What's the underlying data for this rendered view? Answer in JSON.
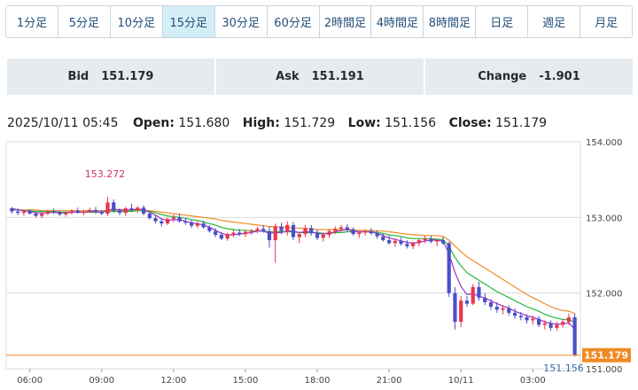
{
  "timeframe_tabs": [
    {
      "label": "1分足",
      "active": false
    },
    {
      "label": "5分足",
      "active": false
    },
    {
      "label": "10分足",
      "active": false
    },
    {
      "label": "15分足",
      "active": true
    },
    {
      "label": "30分足",
      "active": false
    },
    {
      "label": "60分足",
      "active": false
    },
    {
      "label": "2時間足",
      "active": false
    },
    {
      "label": "4時間足",
      "active": false
    },
    {
      "label": "8時間足",
      "active": false
    },
    {
      "label": "日足",
      "active": false
    },
    {
      "label": "週足",
      "active": false
    },
    {
      "label": "月足",
      "active": false
    }
  ],
  "quote": {
    "bid_label": "Bid",
    "bid_value": "151.179",
    "ask_label": "Ask",
    "ask_value": "151.191",
    "change_label": "Change",
    "change_value": "-1.901"
  },
  "ohlc": {
    "datetime": "2025/10/11 05:45",
    "open_label": "Open:",
    "open_value": "151.680",
    "high_label": "High:",
    "high_value": "151.729",
    "low_label": "Low:",
    "low_value": "151.156",
    "close_label": "Close:",
    "close_value": "151.179"
  },
  "colors": {
    "up": "#e8374a",
    "down": "#4a4fc8",
    "ma_fast": "#9b2fc8",
    "ma_mid": "#22b83a",
    "ma_slow": "#f08a24",
    "last_price": "#f08a24",
    "grid": "#dcdcdc",
    "axis_text": "#444444",
    "high_marker": "#d0336a",
    "low_marker": "#3a6aa8"
  },
  "chart_data": {
    "type": "candlestick",
    "interval": "15min",
    "y_ticks": [
      "154.000",
      "153.000",
      "152.000",
      "151.000"
    ],
    "ylim": [
      151.0,
      154.0
    ],
    "x_ticks": [
      "06:00",
      "09:00",
      "12:00",
      "15:00",
      "18:00",
      "21:00",
      "10/11",
      "03:00"
    ],
    "high_marker": {
      "label": "153.272",
      "value": 153.272
    },
    "low_marker": {
      "label": "151.156",
      "value": 151.156
    },
    "last_price": {
      "label": "151.179",
      "value": 151.179
    },
    "candles": [
      [
        153.12,
        153.14,
        153.05,
        153.08
      ],
      [
        153.08,
        153.12,
        153.03,
        153.06
      ],
      [
        153.06,
        153.1,
        153.02,
        153.08
      ],
      [
        153.08,
        153.11,
        153.04,
        153.05
      ],
      [
        153.05,
        153.08,
        153.0,
        153.02
      ],
      [
        153.02,
        153.07,
        152.99,
        153.05
      ],
      [
        153.05,
        153.1,
        153.03,
        153.08
      ],
      [
        153.08,
        153.12,
        153.05,
        153.06
      ],
      [
        153.06,
        153.09,
        153.02,
        153.04
      ],
      [
        153.04,
        153.08,
        153.01,
        153.06
      ],
      [
        153.06,
        153.11,
        153.04,
        153.09
      ],
      [
        153.09,
        153.13,
        153.05,
        153.06
      ],
      [
        153.06,
        153.1,
        153.03,
        153.08
      ],
      [
        153.08,
        153.13,
        153.06,
        153.1
      ],
      [
        153.1,
        153.14,
        153.05,
        153.07
      ],
      [
        153.07,
        153.1,
        153.03,
        153.05
      ],
      [
        153.05,
        153.27,
        153.02,
        153.2
      ],
      [
        153.2,
        153.24,
        153.06,
        153.09
      ],
      [
        153.09,
        153.12,
        153.03,
        153.06
      ],
      [
        153.06,
        153.14,
        153.02,
        153.12
      ],
      [
        153.12,
        153.18,
        153.08,
        153.1
      ],
      [
        153.1,
        153.15,
        153.06,
        153.13
      ],
      [
        153.13,
        153.16,
        153.03,
        153.05
      ],
      [
        153.05,
        153.08,
        152.97,
        152.99
      ],
      [
        152.99,
        153.03,
        152.92,
        152.95
      ],
      [
        152.95,
        152.99,
        152.88,
        152.92
      ],
      [
        152.92,
        153.0,
        152.9,
        152.98
      ],
      [
        152.98,
        153.04,
        152.94,
        153.0
      ],
      [
        153.0,
        153.05,
        152.93,
        152.95
      ],
      [
        152.95,
        152.99,
        152.9,
        152.93
      ],
      [
        152.93,
        152.97,
        152.86,
        152.89
      ],
      [
        152.89,
        152.95,
        152.86,
        152.92
      ],
      [
        152.92,
        152.96,
        152.85,
        152.87
      ],
      [
        152.87,
        152.9,
        152.8,
        152.82
      ],
      [
        152.82,
        152.86,
        152.74,
        152.77
      ],
      [
        152.77,
        152.81,
        152.7,
        152.72
      ],
      [
        152.72,
        152.8,
        152.69,
        152.78
      ],
      [
        152.78,
        152.84,
        152.74,
        152.8
      ],
      [
        152.8,
        152.85,
        152.75,
        152.78
      ],
      [
        152.78,
        152.83,
        152.74,
        152.81
      ],
      [
        152.81,
        152.85,
        152.77,
        152.83
      ],
      [
        152.83,
        152.88,
        152.79,
        152.85
      ],
      [
        152.85,
        152.9,
        152.8,
        152.82
      ],
      [
        152.82,
        152.88,
        152.6,
        152.7
      ],
      [
        152.7,
        152.92,
        152.4,
        152.88
      ],
      [
        152.88,
        152.93,
        152.78,
        152.82
      ],
      [
        152.82,
        152.95,
        152.76,
        152.9
      ],
      [
        152.9,
        152.94,
        152.7,
        152.74
      ],
      [
        152.74,
        152.8,
        152.66,
        152.78
      ],
      [
        152.78,
        152.9,
        152.74,
        152.86
      ],
      [
        152.86,
        152.9,
        152.76,
        152.79
      ],
      [
        152.79,
        152.84,
        152.7,
        152.73
      ],
      [
        152.73,
        152.8,
        152.68,
        152.77
      ],
      [
        152.77,
        152.85,
        152.73,
        152.82
      ],
      [
        152.82,
        152.88,
        152.78,
        152.85
      ],
      [
        152.85,
        152.9,
        152.8,
        152.87
      ],
      [
        152.87,
        152.91,
        152.82,
        152.84
      ],
      [
        152.84,
        152.87,
        152.76,
        152.78
      ],
      [
        152.78,
        152.82,
        152.73,
        152.8
      ],
      [
        152.8,
        152.84,
        152.76,
        152.82
      ],
      [
        152.82,
        152.86,
        152.77,
        152.79
      ],
      [
        152.79,
        152.83,
        152.72,
        152.75
      ],
      [
        152.75,
        152.79,
        152.68,
        152.7
      ],
      [
        152.7,
        152.76,
        152.64,
        152.66
      ],
      [
        152.66,
        152.72,
        152.61,
        152.69
      ],
      [
        152.69,
        152.74,
        152.63,
        152.65
      ],
      [
        152.65,
        152.7,
        152.59,
        152.62
      ],
      [
        152.62,
        152.68,
        152.58,
        152.66
      ],
      [
        152.66,
        152.72,
        152.62,
        152.7
      ],
      [
        152.7,
        152.76,
        152.66,
        152.72
      ],
      [
        152.72,
        152.76,
        152.66,
        152.68
      ],
      [
        152.68,
        152.72,
        152.62,
        152.7
      ],
      [
        152.7,
        152.74,
        152.64,
        152.66
      ],
      [
        152.66,
        152.68,
        151.95,
        152.0
      ],
      [
        152.0,
        152.08,
        151.52,
        151.62
      ],
      [
        151.62,
        151.96,
        151.55,
        151.9
      ],
      [
        151.9,
        151.96,
        151.82,
        151.86
      ],
      [
        151.86,
        152.12,
        151.84,
        152.08
      ],
      [
        152.08,
        152.15,
        151.9,
        151.94
      ],
      [
        151.94,
        152.0,
        151.84,
        151.88
      ],
      [
        151.88,
        151.92,
        151.78,
        151.82
      ],
      [
        151.82,
        151.88,
        151.74,
        151.78
      ],
      [
        151.78,
        151.84,
        151.72,
        151.8
      ],
      [
        151.8,
        151.84,
        151.7,
        151.74
      ],
      [
        151.74,
        151.8,
        151.66,
        151.7
      ],
      [
        151.7,
        151.75,
        151.64,
        151.68
      ],
      [
        151.68,
        151.72,
        151.6,
        151.64
      ],
      [
        151.64,
        151.7,
        151.58,
        151.66
      ],
      [
        151.66,
        151.7,
        151.55,
        151.58
      ],
      [
        151.58,
        151.64,
        151.52,
        151.6
      ],
      [
        151.6,
        151.64,
        151.5,
        151.54
      ],
      [
        151.54,
        151.62,
        151.5,
        151.58
      ],
      [
        151.58,
        151.66,
        151.54,
        151.62
      ],
      [
        151.62,
        151.73,
        151.58,
        151.68
      ],
      [
        151.68,
        151.73,
        151.16,
        151.18
      ]
    ],
    "ma_fast": [
      153.12,
      153.1,
      153.09,
      153.08,
      153.06,
      153.06,
      153.06,
      153.07,
      153.06,
      153.06,
      153.07,
      153.07,
      153.07,
      153.08,
      153.08,
      153.07,
      153.1,
      153.11,
      153.1,
      153.1,
      153.1,
      153.11,
      153.1,
      153.07,
      153.03,
      152.98,
      152.96,
      152.97,
      152.97,
      152.95,
      152.93,
      152.92,
      152.9,
      152.87,
      152.83,
      152.79,
      152.77,
      152.77,
      152.78,
      152.79,
      152.8,
      152.82,
      152.82,
      152.79,
      152.8,
      152.8,
      152.82,
      152.82,
      152.8,
      152.81,
      152.81,
      152.79,
      152.78,
      152.79,
      152.81,
      152.83,
      152.84,
      152.82,
      152.81,
      152.81,
      152.81,
      152.79,
      152.76,
      152.73,
      152.71,
      152.69,
      152.67,
      152.66,
      152.67,
      152.69,
      152.7,
      152.7,
      152.69,
      152.52,
      152.27,
      152.09,
      151.98,
      151.99,
      151.96,
      151.93,
      151.9,
      151.86,
      151.83,
      151.8,
      151.76,
      151.73,
      151.7,
      151.68,
      151.65,
      151.62,
      151.6,
      151.59,
      151.59,
      151.61,
      151.52
    ],
    "ma_mid": [
      153.1,
      153.1,
      153.09,
      153.09,
      153.08,
      153.08,
      153.08,
      153.08,
      153.07,
      153.07,
      153.07,
      153.07,
      153.07,
      153.07,
      153.07,
      153.07,
      153.08,
      153.08,
      153.08,
      153.08,
      153.08,
      153.09,
      153.09,
      153.08,
      153.06,
      153.04,
      153.02,
      153.01,
      153.0,
      152.99,
      152.97,
      152.96,
      152.94,
      152.92,
      152.9,
      152.87,
      152.85,
      152.84,
      152.83,
      152.83,
      152.82,
      152.82,
      152.82,
      152.81,
      152.81,
      152.81,
      152.81,
      152.81,
      152.8,
      152.8,
      152.8,
      152.8,
      152.79,
      152.79,
      152.8,
      152.8,
      152.81,
      152.81,
      152.81,
      152.81,
      152.81,
      152.8,
      152.79,
      152.77,
      152.76,
      152.75,
      152.73,
      152.72,
      152.72,
      152.72,
      152.72,
      152.71,
      152.71,
      152.62,
      152.47,
      152.36,
      152.27,
      152.22,
      152.17,
      152.12,
      152.07,
      152.02,
      151.98,
      151.94,
      151.9,
      151.86,
      151.82,
      151.79,
      151.76,
      151.72,
      151.69,
      151.67,
      151.65,
      151.65,
      151.61
    ],
    "ma_slow": [
      153.1,
      153.1,
      153.1,
      153.1,
      153.1,
      153.09,
      153.09,
      153.09,
      153.09,
      153.09,
      153.09,
      153.09,
      153.09,
      153.09,
      153.09,
      153.09,
      153.09,
      153.09,
      153.09,
      153.09,
      153.09,
      153.1,
      153.1,
      153.09,
      153.08,
      153.07,
      153.06,
      153.05,
      153.04,
      153.03,
      153.02,
      153.01,
      153.0,
      152.99,
      152.98,
      152.96,
      152.95,
      152.94,
      152.93,
      152.92,
      152.91,
      152.9,
      152.89,
      152.88,
      152.88,
      152.87,
      152.87,
      152.86,
      152.86,
      152.85,
      152.85,
      152.84,
      152.84,
      152.84,
      152.84,
      152.84,
      152.84,
      152.84,
      152.83,
      152.83,
      152.83,
      152.82,
      152.82,
      152.81,
      152.8,
      152.79,
      152.78,
      152.77,
      152.77,
      152.76,
      152.76,
      152.76,
      152.75,
      152.7,
      152.62,
      152.55,
      152.48,
      152.43,
      152.38,
      152.33,
      152.28,
      152.23,
      152.18,
      152.13,
      152.08,
      152.03,
      151.98,
      151.94,
      151.9,
      151.86,
      151.82,
      151.79,
      151.77,
      151.76,
      151.73
    ]
  }
}
